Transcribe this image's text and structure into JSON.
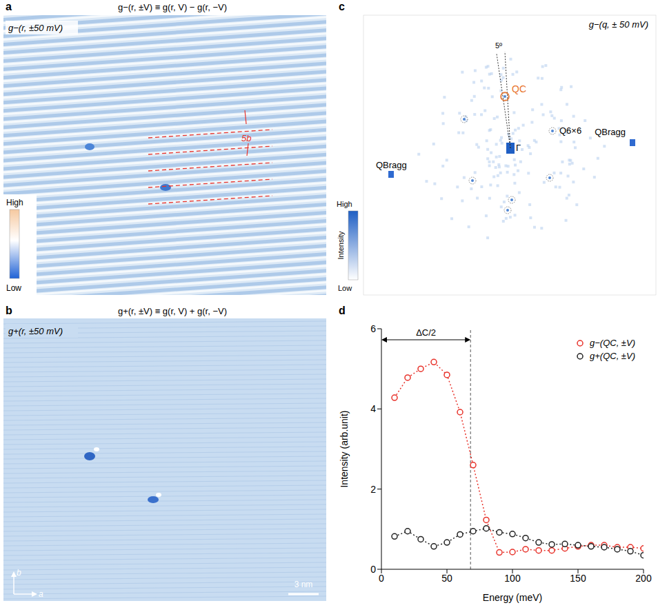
{
  "panel_a": {
    "letter": "a",
    "title": "g−(r, ±V) ≡ g(r, V) − g(r, −V)",
    "label": "g−(r, ±50 mV)",
    "period": "5b",
    "colorbar": {
      "high": "High",
      "low": "Low"
    }
  },
  "panel_b": {
    "letter": "b",
    "title": "g+(r, ±V) ≡ g(r, V) + g(r, −V)",
    "label": "g+(r, ±50 mV)",
    "axes": {
      "up": "b",
      "right": "a"
    },
    "scale_bar": "3 nm"
  },
  "panel_c": {
    "letter": "c",
    "label": "g−(q, ± 50 mV)",
    "angle": "5º",
    "peaks": {
      "center": "Γ",
      "charge": "QC",
      "superlattice": "Q6×6",
      "bragg": "QBragg"
    },
    "colorbar": {
      "high": "High",
      "title": "Intensity",
      "low": "Low"
    }
  },
  "chart_data": {
    "letter": "d",
    "type": "line",
    "x_label": "Energy (meV)",
    "y_label": "Intensity (arb.unit)",
    "x": [
      10,
      20,
      30,
      40,
      50,
      60,
      70,
      80,
      90,
      100,
      110,
      120,
      130,
      140,
      150,
      160,
      170,
      180,
      190,
      200
    ],
    "series": [
      {
        "name": "g−(QC, ±V)",
        "color": "#e8322a",
        "values": [
          4.28,
          4.78,
          5.0,
          5.17,
          4.85,
          3.92,
          2.6,
          1.23,
          0.42,
          0.43,
          0.5,
          0.47,
          0.47,
          0.52,
          0.57,
          0.6,
          0.6,
          0.55,
          0.55,
          0.52
        ]
      },
      {
        "name": "g+(QC, ±V)",
        "color": "#222222",
        "values": [
          0.82,
          0.95,
          0.75,
          0.57,
          0.67,
          0.87,
          0.95,
          1.02,
          0.92,
          0.88,
          0.78,
          0.67,
          0.62,
          0.63,
          0.6,
          0.57,
          0.55,
          0.5,
          0.45,
          0.35
        ]
      }
    ],
    "xlim": [
      0,
      200
    ],
    "xticks": [
      0,
      50,
      100,
      150,
      200
    ],
    "ylim": [
      0,
      6
    ],
    "yticks": [
      0,
      2,
      4,
      6
    ],
    "annotations": [
      {
        "text": "ΔC/2",
        "x": 68
      }
    ],
    "legend": "top-right",
    "marker": "open-circle",
    "line_style": "dotted"
  }
}
